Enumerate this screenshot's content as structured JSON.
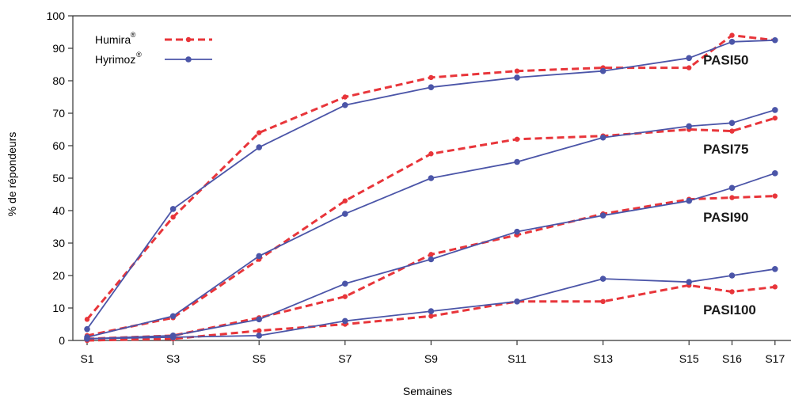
{
  "chart_data": {
    "type": "line",
    "xlabel": "Semaines",
    "ylabel": "% de répondeurs",
    "ylim": [
      0,
      100
    ],
    "yticks": [
      0,
      10,
      20,
      30,
      40,
      50,
      60,
      70,
      80,
      90,
      100
    ],
    "categories": [
      "S1",
      "S3",
      "S5",
      "S7",
      "S9",
      "S11",
      "S13",
      "S15",
      "S16",
      "S17"
    ],
    "category_week": [
      1,
      3,
      5,
      7,
      9,
      11,
      13,
      15,
      16,
      17
    ],
    "grid": false,
    "legend_position": "top-left",
    "legend": [
      {
        "label": "Humira",
        "sup": "®",
        "color": "#e8353a",
        "style": "dashed"
      },
      {
        "label": "Hyrimoz",
        "sup": "®",
        "color": "#4b55a8",
        "style": "solid"
      }
    ],
    "series": [
      {
        "name": "PASI50 Humira",
        "product": "Humira",
        "group": "PASI50",
        "color": "#e8353a",
        "style": "dashed",
        "values": [
          6.5,
          38,
          64,
          75,
          81,
          83,
          84,
          84,
          94,
          92.5
        ]
      },
      {
        "name": "PASI50 Hyrimoz",
        "product": "Hyrimoz",
        "group": "PASI50",
        "color": "#4b55a8",
        "style": "solid",
        "values": [
          3.5,
          40.5,
          59.5,
          72.5,
          78,
          81,
          83,
          87,
          92,
          92.5
        ]
      },
      {
        "name": "PASI75 Humira",
        "product": "Humira",
        "group": "PASI75",
        "color": "#e8353a",
        "style": "dashed",
        "values": [
          1.5,
          7,
          25,
          43,
          57.5,
          62,
          63,
          65,
          64.5,
          68.5
        ]
      },
      {
        "name": "PASI75 Hyrimoz",
        "product": "Hyrimoz",
        "group": "PASI75",
        "color": "#4b55a8",
        "style": "solid",
        "values": [
          1,
          7.5,
          26,
          39,
          50,
          55,
          62.5,
          66,
          67,
          71
        ]
      },
      {
        "name": "PASI90 Humira",
        "product": "Humira",
        "group": "PASI90",
        "color": "#e8353a",
        "style": "dashed",
        "values": [
          0.5,
          1.5,
          7,
          13.5,
          26.5,
          32.5,
          39,
          43.5,
          44,
          44.5
        ]
      },
      {
        "name": "PASI90 Hyrimoz",
        "product": "Hyrimoz",
        "group": "PASI90",
        "color": "#4b55a8",
        "style": "solid",
        "values": [
          0.5,
          1.5,
          6.5,
          17.5,
          25,
          33.5,
          38.5,
          43,
          47,
          51.5
        ]
      },
      {
        "name": "PASI100 Humira",
        "product": "Humira",
        "group": "PASI100",
        "color": "#e8353a",
        "style": "dashed",
        "values": [
          0,
          0.5,
          3,
          5,
          7.5,
          12,
          12,
          17,
          15,
          16.5
        ]
      },
      {
        "name": "PASI100 Hyrimoz",
        "product": "Hyrimoz",
        "group": "PASI100",
        "color": "#4b55a8",
        "style": "solid",
        "values": [
          0.5,
          1,
          1.5,
          6,
          9,
          12,
          19,
          18,
          20,
          22
        ]
      }
    ],
    "annotations": [
      {
        "text": "PASI50",
        "week": 16.6,
        "y": 86.5
      },
      {
        "text": "PASI75",
        "week": 16.6,
        "y": 59
      },
      {
        "text": "PASI90",
        "week": 16.6,
        "y": 38
      },
      {
        "text": "PASI100",
        "week": 16.6,
        "y": 9.5
      }
    ]
  }
}
